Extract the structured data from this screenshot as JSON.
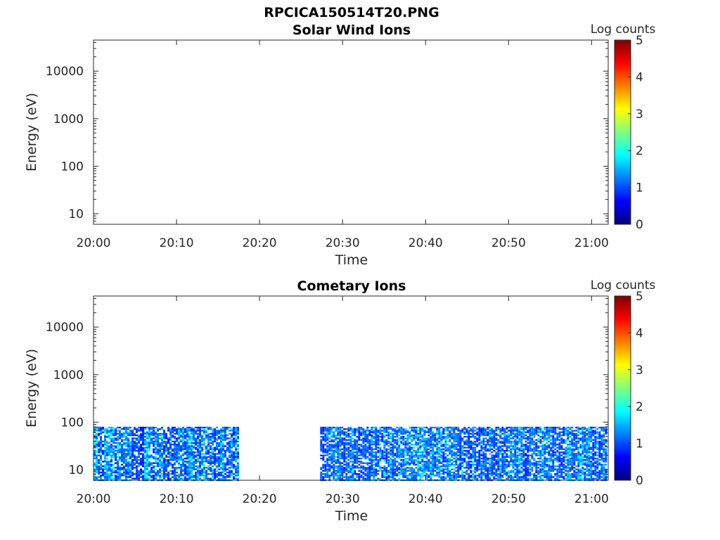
{
  "figure": {
    "title": "RPCICA150514T20.PNG"
  },
  "colormap": {
    "name": "jet",
    "stops": [
      "#00007f",
      "#0000ff",
      "#007fff",
      "#00ffff",
      "#7fff7f",
      "#ffff00",
      "#ff7f00",
      "#ff0000",
      "#7f0000"
    ]
  },
  "chart_data": [
    {
      "type": "heatmap",
      "title": "Solar Wind Ions",
      "xlabel": "Time",
      "ylabel": "Energy (eV)",
      "x_ticks": [
        "20:00",
        "20:10",
        "20:20",
        "20:30",
        "20:40",
        "20:50",
        "21:00"
      ],
      "xlim": [
        "20:00",
        "21:02"
      ],
      "y_scale": "log",
      "y_ticks": [
        "10",
        "100",
        "1000",
        "10000"
      ],
      "ylim": [
        6,
        45000
      ],
      "colorbar": {
        "label": "Log counts",
        "ticks": [
          "0",
          "1",
          "2",
          "3",
          "4",
          "5"
        ],
        "range": [
          0,
          5
        ]
      },
      "data_blocks": []
    },
    {
      "type": "heatmap",
      "title": "Cometary Ions",
      "xlabel": "Time",
      "ylabel": "Energy (eV)",
      "x_ticks": [
        "20:00",
        "20:10",
        "20:20",
        "20:30",
        "20:40",
        "20:50",
        "21:00"
      ],
      "xlim": [
        "20:00",
        "21:02"
      ],
      "y_scale": "log",
      "y_ticks": [
        "10",
        "100",
        "1000",
        "10000"
      ],
      "ylim": [
        6,
        45000
      ],
      "colorbar": {
        "label": "Log counts",
        "ticks": [
          "0",
          "1",
          "2",
          "3",
          "4",
          "5"
        ],
        "range": [
          0,
          5
        ]
      },
      "data_blocks": [
        {
          "start": "20:00",
          "end": "20:17.6",
          "energy_min": 6,
          "energy_max": 80,
          "log_counts_range": [
            0,
            2
          ]
        },
        {
          "start": "20:27.3",
          "end": "21:02",
          "energy_min": 6,
          "energy_max": 80,
          "log_counts_range": [
            0,
            2
          ]
        }
      ]
    }
  ]
}
